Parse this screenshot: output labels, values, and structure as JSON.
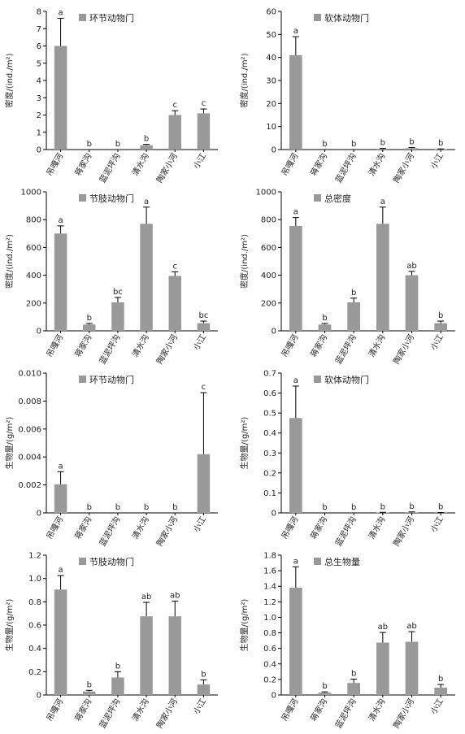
{
  "chart_data": [
    {
      "type": "bar",
      "title": "环节动物门",
      "ylabel": "密度/(ind./m²)",
      "categories": [
        "吊嘎河",
        "蒋家沟",
        "蓝泥坪沟",
        "清水沟",
        "陶家小河",
        "小江"
      ],
      "ylim": [
        0,
        8
      ],
      "yticks": [
        0,
        1,
        2,
        3,
        4,
        5,
        6,
        7,
        8
      ],
      "ytick_labels": [
        "0",
        "1",
        "2",
        "3",
        "4",
        "5",
        "6",
        "7",
        "8"
      ],
      "values": [
        6.0,
        0.0,
        0.0,
        0.25,
        2.0,
        2.1
      ],
      "errors": [
        1.6,
        0,
        0,
        0.05,
        0.25,
        0.25
      ],
      "labels": [
        "a",
        "b",
        "b",
        "b",
        "c",
        "c"
      ],
      "legend": "top-left",
      "grid": false,
      "bar_color": "#999999"
    },
    {
      "type": "bar",
      "title": "软体动物门",
      "ylabel": "密度/(ind./m²)",
      "categories": [
        "吊嘎河",
        "蒋家沟",
        "蓝泥坪沟",
        "清水沟",
        "陶家小河",
        "小江"
      ],
      "ylim": [
        0,
        60
      ],
      "yticks": [
        0,
        10,
        20,
        30,
        40,
        50,
        60
      ],
      "ytick_labels": [
        "0",
        "10",
        "20",
        "30",
        "40",
        "50",
        "60"
      ],
      "values": [
        41,
        0,
        0,
        0.3,
        0.6,
        0.2
      ],
      "errors": [
        8,
        0,
        0,
        0.2,
        0.3,
        0.1
      ],
      "labels": [
        "a",
        "b",
        "b",
        "b",
        "b",
        "b"
      ],
      "legend": "top-left",
      "grid": false,
      "bar_color": "#999999"
    },
    {
      "type": "bar",
      "title": "节肢动物门",
      "ylabel": "密度/(ind./m²)",
      "categories": [
        "吊嘎河",
        "蒋家沟",
        "蓝泥坪沟",
        "清水沟",
        "陶家小河",
        "小江"
      ],
      "ylim": [
        0,
        1000
      ],
      "yticks": [
        0,
        200,
        400,
        600,
        800,
        1000
      ],
      "ytick_labels": [
        "0",
        "200",
        "400",
        "600",
        "800",
        "1000"
      ],
      "values": [
        700,
        45,
        205,
        770,
        395,
        55
      ],
      "errors": [
        55,
        8,
        35,
        120,
        30,
        15
      ],
      "labels": [
        "a",
        "b",
        "bc",
        "a",
        "c",
        "bc"
      ],
      "legend": "top-left",
      "grid": false,
      "bar_color": "#999999"
    },
    {
      "type": "bar",
      "title": "总密度",
      "ylabel": "密度/(ind./m²)",
      "categories": [
        "吊嘎河",
        "蒋家沟",
        "蓝泥坪沟",
        "清水沟",
        "陶家小河",
        "小江"
      ],
      "ylim": [
        0,
        1000
      ],
      "yticks": [
        0,
        200,
        400,
        600,
        800,
        1000
      ],
      "ytick_labels": [
        "0",
        "200",
        "400",
        "600",
        "800",
        "1000"
      ],
      "values": [
        755,
        45,
        205,
        770,
        400,
        55
      ],
      "errors": [
        60,
        8,
        30,
        120,
        28,
        15
      ],
      "labels": [
        "a",
        "b",
        "b",
        "a",
        "ab",
        "b"
      ],
      "legend": "top-left",
      "grid": false,
      "bar_color": "#999999"
    },
    {
      "type": "bar",
      "title": "环节动物门",
      "ylabel": "生物量/(g/m²)",
      "categories": [
        "吊嘎河",
        "蒋家沟",
        "蓝泥坪沟",
        "清水沟",
        "陶家小河",
        "小江"
      ],
      "ylim": [
        0,
        0.01
      ],
      "yticks": [
        0,
        0.002,
        0.004,
        0.006,
        0.008,
        0.01
      ],
      "ytick_labels": [
        "0",
        "0.002",
        "0.004",
        "0.006",
        "0.008",
        "0.010"
      ],
      "values": [
        0.00205,
        0,
        0,
        0,
        0,
        0.0042
      ],
      "errors": [
        0.0009,
        0,
        0,
        0,
        0,
        0.0044
      ],
      "labels": [
        "a",
        "b",
        "b",
        "b",
        "b",
        "c"
      ],
      "legend": "top-left",
      "grid": false,
      "bar_color": "#999999"
    },
    {
      "type": "bar",
      "title": "软体动物门",
      "ylabel": "生物量/(g/m²)",
      "categories": [
        "吊嘎河",
        "蒋家沟",
        "蓝泥坪沟",
        "清水沟",
        "陶家小河",
        "小江"
      ],
      "ylim": [
        0,
        0.7
      ],
      "yticks": [
        0,
        0.1,
        0.2,
        0.3,
        0.4,
        0.5,
        0.6,
        0.7
      ],
      "ytick_labels": [
        "0",
        "0.1",
        "0.2",
        "0.3",
        "0.4",
        "0.5",
        "0.6",
        "0.7"
      ],
      "values": [
        0.475,
        0,
        0,
        0.002,
        0.003,
        0.001
      ],
      "errors": [
        0.16,
        0,
        0,
        0.001,
        0.002,
        0.001
      ],
      "labels": [
        "a",
        "b",
        "b",
        "b",
        "b",
        "b"
      ],
      "legend": "top-left",
      "grid": false,
      "bar_color": "#999999"
    },
    {
      "type": "bar",
      "title": "节肢动物门",
      "ylabel": "生物量/(g/m²)",
      "categories": [
        "吊嘎河",
        "蒋家沟",
        "蓝泥坪沟",
        "清水沟",
        "陶家小河",
        "小江"
      ],
      "ylim": [
        0,
        1.2
      ],
      "yticks": [
        0,
        0.2,
        0.4,
        0.6,
        0.8,
        1.0,
        1.2
      ],
      "ytick_labels": [
        "0",
        "0.2",
        "0.4",
        "0.6",
        "0.8",
        "1.0",
        "1.2"
      ],
      "values": [
        0.905,
        0.03,
        0.15,
        0.675,
        0.675,
        0.09
      ],
      "errors": [
        0.12,
        0.01,
        0.05,
        0.12,
        0.13,
        0.04
      ],
      "labels": [
        "a",
        "b",
        "b",
        "ab",
        "ab",
        "b"
      ],
      "legend": "top-left",
      "grid": false,
      "bar_color": "#999999"
    },
    {
      "type": "bar",
      "title": "总生物量",
      "ylabel": "生物量/(g/m²)",
      "categories": [
        "吊嘎河",
        "蒋家沟",
        "蓝泥坪沟",
        "清水沟",
        "陶家小河",
        "小江"
      ],
      "ylim": [
        0,
        1.8
      ],
      "yticks": [
        0,
        0.2,
        0.4,
        0.6,
        0.8,
        1.0,
        1.2,
        1.4,
        1.6,
        1.8
      ],
      "ytick_labels": [
        "0",
        "0.2",
        "0.4",
        "0.6",
        "0.8",
        "1.0",
        "1.2",
        "1.4",
        "1.6",
        "1.8"
      ],
      "values": [
        1.38,
        0.03,
        0.155,
        0.675,
        0.685,
        0.095
      ],
      "errors": [
        0.27,
        0.01,
        0.05,
        0.13,
        0.13,
        0.04
      ],
      "labels": [
        "a",
        "b",
        "b",
        "ab",
        "ab",
        "b"
      ],
      "legend": "top-left",
      "grid": false,
      "bar_color": "#999999"
    }
  ]
}
